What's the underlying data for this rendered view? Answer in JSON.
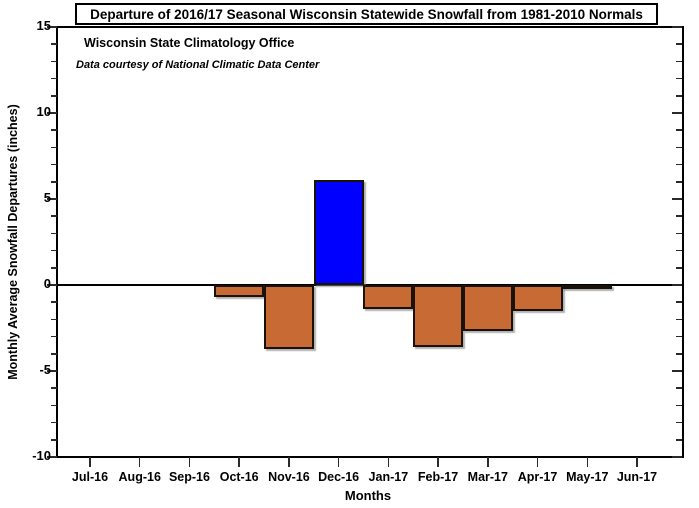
{
  "title": "Departure of 2016/17 Seasonal Wisconsin Statewide Snowfall from 1981-2010 Normals",
  "annotations": {
    "line1": "Wisconsin State Climatology Office",
    "line2": "Data courtesy of National Climatic Data Center"
  },
  "chart_data": {
    "type": "bar",
    "title": "Departure of 2016/17 Seasonal Wisconsin Statewide Snowfall from 1981-2010 Normals",
    "xlabel": "Months",
    "ylabel": "Monthly Average Snowfall Departures (inches)",
    "categories": [
      "Jul-16",
      "Aug-16",
      "Sep-16",
      "Oct-16",
      "Nov-16",
      "Dec-16",
      "Jan-17",
      "Feb-17",
      "Mar-17",
      "Apr-17",
      "May-17",
      "Jun-17"
    ],
    "values": [
      null,
      null,
      null,
      -0.7,
      -3.7,
      6.1,
      -1.4,
      -3.6,
      -2.7,
      -1.5,
      -0.1,
      null
    ],
    "ylim": [
      -10,
      15
    ],
    "y_major_tick": 5,
    "y_minor_tick": 1,
    "grid": false,
    "legend": false,
    "zero_line": true,
    "colors": {
      "positive_bar": "#0000FF",
      "negative_bar": "#C76A34",
      "bar_border": "#1a1208",
      "axis": "#000000"
    }
  }
}
